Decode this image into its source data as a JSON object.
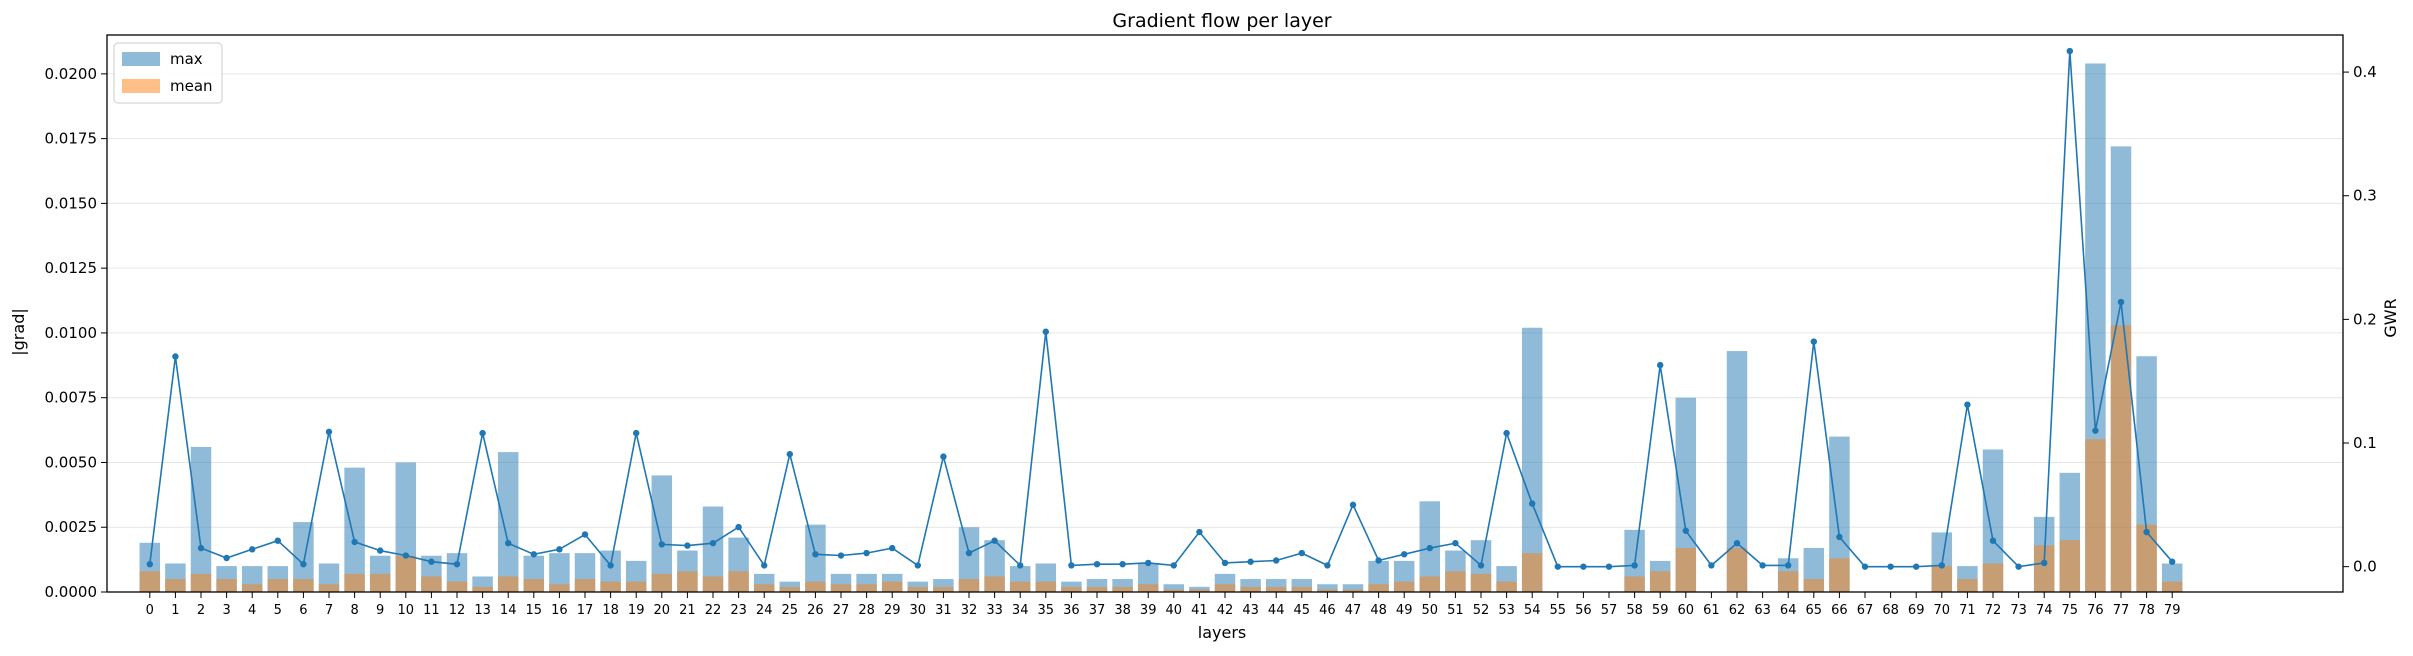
{
  "chart_data": {
    "type": "bar",
    "title": "Gradient flow per layer",
    "xlabel": "layers",
    "ylabel": "|grad|",
    "y2label": "GWR",
    "categories": [
      "0",
      "1",
      "2",
      "3",
      "4",
      "5",
      "6",
      "7",
      "8",
      "9",
      "10",
      "11",
      "12",
      "13",
      "14",
      "15",
      "16",
      "17",
      "18",
      "19",
      "20",
      "21",
      "22",
      "23",
      "24",
      "25",
      "26",
      "27",
      "28",
      "29",
      "30",
      "31",
      "32",
      "33",
      "34",
      "35",
      "36",
      "37",
      "38",
      "39",
      "40",
      "41",
      "42",
      "43",
      "44",
      "45",
      "46",
      "47",
      "48",
      "49",
      "50",
      "51",
      "52",
      "53",
      "54",
      "55",
      "56",
      "57",
      "58",
      "59",
      "60",
      "61",
      "62",
      "63",
      "64",
      "65",
      "66",
      "67",
      "68",
      "69",
      "70",
      "71",
      "72",
      "73",
      "74",
      "75",
      "76",
      "77",
      "78",
      "79"
    ],
    "ylim": [
      0,
      0.0215
    ],
    "y2lim": [
      -0.0205,
      0.43
    ],
    "yticks": [
      "0.0000",
      "0.0025",
      "0.0050",
      "0.0075",
      "0.0100",
      "0.0125",
      "0.0150",
      "0.0175",
      "0.0200"
    ],
    "y2ticks": [
      "0.0",
      "0.1",
      "0.2",
      "0.3",
      "0.4"
    ],
    "grid": "horizontal",
    "legend_position": "top-left",
    "series": [
      {
        "name": "max",
        "kind": "bar",
        "color": "#1f77b4",
        "alpha": 0.5,
        "values": [
          0.0019,
          0.0011,
          0.0056,
          0.001,
          0.001,
          0.001,
          0.0027,
          0.0011,
          0.0048,
          0.0014,
          0.005,
          0.0014,
          0.0015,
          0.0006,
          0.0054,
          0.0014,
          0.0015,
          0.0015,
          0.0016,
          0.0012,
          0.0045,
          0.0016,
          0.0033,
          0.0021,
          0.0007,
          0.0004,
          0.0026,
          0.0007,
          0.0007,
          0.0007,
          0.0004,
          0.0005,
          0.0025,
          0.002,
          0.001,
          0.0011,
          0.0004,
          0.0005,
          0.0005,
          0.0011,
          0.0003,
          0.0002,
          0.0007,
          0.0005,
          0.0005,
          0.0005,
          0.0003,
          0.0003,
          0.0012,
          0.0012,
          0.0035,
          0.0016,
          0.002,
          0.001,
          0.0102,
          0.0,
          0.0,
          0.0,
          0.0024,
          0.0012,
          0.0075,
          0.0,
          0.0093,
          0.0,
          0.0013,
          0.0017,
          0.006,
          0.0,
          0.0,
          0.0,
          0.0023,
          0.001,
          0.0055,
          0.0,
          0.0029,
          0.0046,
          0.0204,
          0.0172,
          0.0091,
          0.0011
        ]
      },
      {
        "name": "mean",
        "kind": "bar",
        "color": "#ff7f0e",
        "alpha": 0.5,
        "values": [
          0.0008,
          0.0005,
          0.0007,
          0.0005,
          0.0003,
          0.0005,
          0.0005,
          0.0003,
          0.0007,
          0.0007,
          0.0014,
          0.0006,
          0.0004,
          0.0002,
          0.0006,
          0.0005,
          0.0003,
          0.0005,
          0.0004,
          0.0004,
          0.0007,
          0.0008,
          0.0006,
          0.0008,
          0.0003,
          0.0002,
          0.0004,
          0.0003,
          0.0003,
          0.0004,
          0.0002,
          0.0002,
          0.0005,
          0.0006,
          0.0004,
          0.0004,
          0.0002,
          0.0002,
          0.0002,
          0.0003,
          0.0001,
          0.0001,
          0.0003,
          0.0002,
          0.0002,
          0.0002,
          0.0001,
          0.0001,
          0.0003,
          0.0004,
          0.0006,
          0.0008,
          0.0007,
          0.0004,
          0.0015,
          0.0,
          0.0,
          0.0,
          0.0006,
          0.0008,
          0.0017,
          0.0,
          0.0017,
          0.0,
          0.0008,
          0.0005,
          0.0013,
          0.0,
          0.0,
          0.0,
          0.001,
          0.0005,
          0.0011,
          0.0,
          0.0018,
          0.002,
          0.0059,
          0.0103,
          0.0026,
          0.0004
        ]
      },
      {
        "kind": "line",
        "axis": "right",
        "color": "#1f77b4",
        "values": [
          0.002,
          0.17,
          0.015,
          0.007,
          0.014,
          0.021,
          0.002,
          0.109,
          0.02,
          0.013,
          0.009,
          0.004,
          0.002,
          0.108,
          0.019,
          0.01,
          0.014,
          0.026,
          0.001,
          0.108,
          0.018,
          0.017,
          0.019,
          0.032,
          0.001,
          0.091,
          0.01,
          0.009,
          0.011,
          0.015,
          0.001,
          0.089,
          0.011,
          0.021,
          0.001,
          0.19,
          0.001,
          0.002,
          0.002,
          0.003,
          0.001,
          0.028,
          0.003,
          0.004,
          0.005,
          0.011,
          0.001,
          0.05,
          0.005,
          0.01,
          0.015,
          0.019,
          0.001,
          0.108,
          0.051,
          0.0,
          0.0,
          0.0,
          0.001,
          0.163,
          0.029,
          0.001,
          0.019,
          0.001,
          0.001,
          0.182,
          0.024,
          0.0,
          0.0,
          0.0,
          0.001,
          0.131,
          0.021,
          0.0,
          0.003,
          0.417,
          0.11,
          0.214,
          0.028,
          0.004
        ]
      }
    ]
  }
}
